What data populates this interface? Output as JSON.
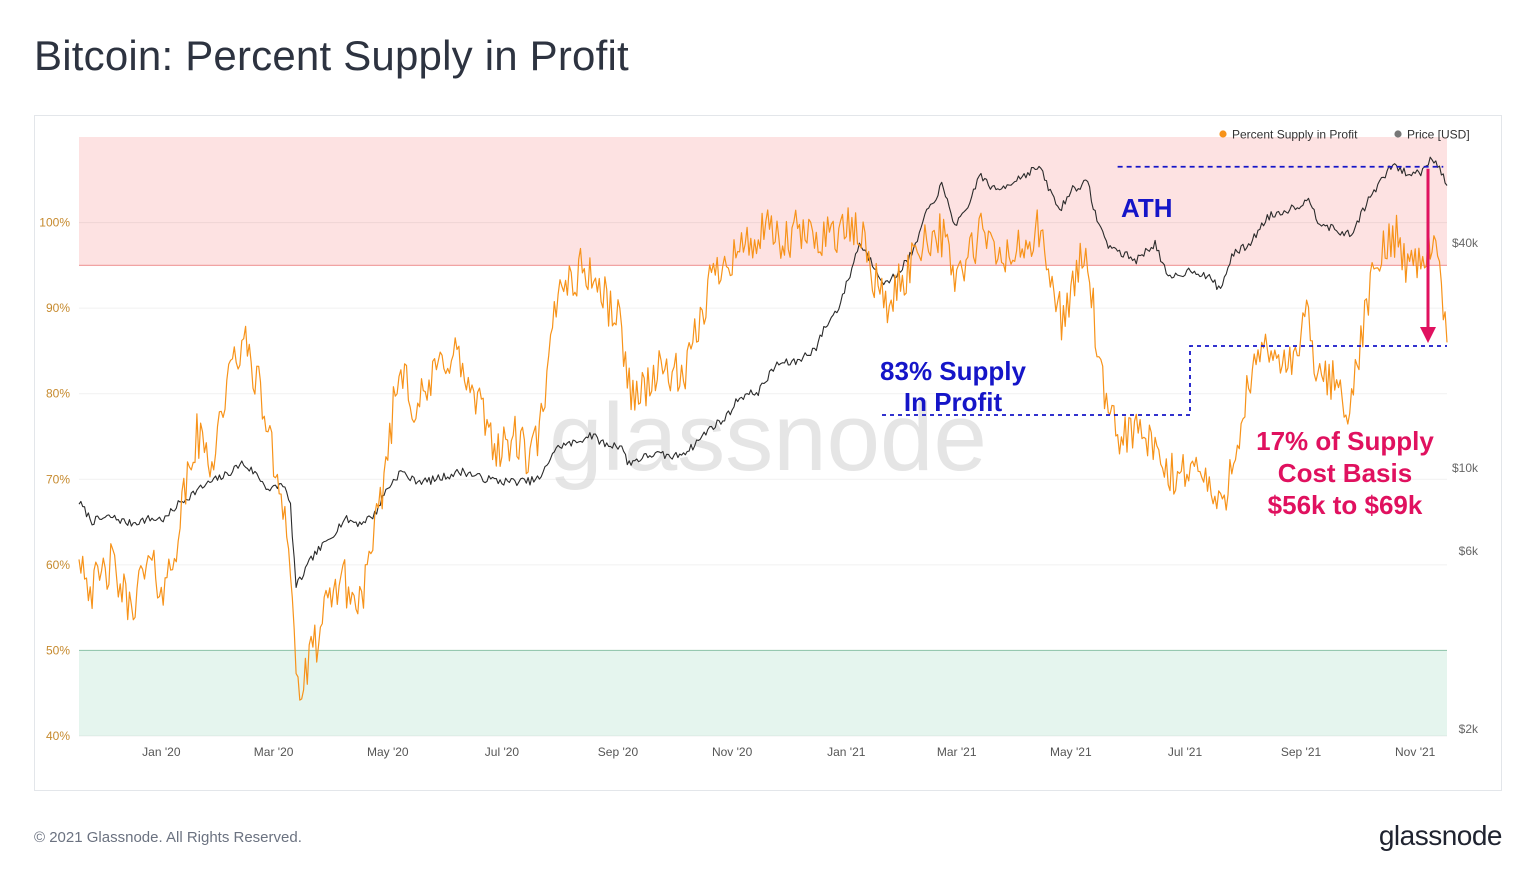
{
  "page": {
    "title": "Bitcoin: Percent Supply in Profit",
    "footer_copyright": "© 2021 Glassnode. All Rights Reserved.",
    "footer_logo": "glassnode",
    "watermark": "glassnode"
  },
  "colors": {
    "supply": "#f7931a",
    "price": "#2b2b2b",
    "upper_band": "#fde2e2",
    "upper_band_line": "#f1a3a3",
    "lower_band": "#e5f5ee",
    "lower_band_line": "#9fd4b9",
    "annotation_blue": "#1515c8",
    "annotation_pink": "#e0115f",
    "tick_left": "#c68a2e",
    "tick_right": "#666666"
  },
  "chart_data": {
    "type": "line",
    "legend": [
      "Percent Supply in Profit",
      "Price [USD]"
    ],
    "legend_position": "top-right",
    "x_ticks": [
      "Jan '20",
      "Mar '20",
      "May '20",
      "Jul '20",
      "Sep '20",
      "Nov '20",
      "Jan '21",
      "Mar '21",
      "May '21",
      "Jul '21",
      "Sep '21",
      "Nov '21"
    ],
    "x_range": [
      "2019-11-18",
      "2021-11-18"
    ],
    "y_left": {
      "ticks": [
        "100%",
        "90%",
        "80%",
        "70%",
        "60%",
        "50%",
        "40%"
      ],
      "range": [
        40,
        110
      ]
    },
    "y_right": {
      "ticks": [
        "$40k",
        "$10k",
        "$6k",
        "$2k"
      ],
      "scale": "log"
    },
    "bands": [
      {
        "from": 95,
        "to": 110,
        "zone": "upper"
      },
      {
        "from": 40,
        "to": 50,
        "zone": "lower"
      }
    ],
    "series": [
      {
        "name": "Percent Supply in Profit",
        "axis": "left",
        "points": [
          [
            "2019-11-18",
            62
          ],
          [
            "2019-11-25",
            57
          ],
          [
            "2019-12-05",
            60
          ],
          [
            "2019-12-15",
            55
          ],
          [
            "2019-12-25",
            60
          ],
          [
            "2020-01-03",
            57
          ],
          [
            "2020-01-10",
            64
          ],
          [
            "2020-01-15",
            70
          ],
          [
            "2020-01-20",
            75
          ],
          [
            "2020-01-28",
            72
          ],
          [
            "2020-02-02",
            78
          ],
          [
            "2020-02-08",
            83
          ],
          [
            "2020-02-13",
            86
          ],
          [
            "2020-02-18",
            84
          ],
          [
            "2020-02-25",
            78
          ],
          [
            "2020-03-01",
            72
          ],
          [
            "2020-03-06",
            68
          ],
          [
            "2020-03-10",
            60
          ],
          [
            "2020-03-13",
            47
          ],
          [
            "2020-03-16",
            45
          ],
          [
            "2020-03-22",
            50
          ],
          [
            "2020-03-30",
            55
          ],
          [
            "2020-04-06",
            59
          ],
          [
            "2020-04-14",
            55
          ],
          [
            "2020-04-22",
            60
          ],
          [
            "2020-04-30",
            72
          ],
          [
            "2020-05-05",
            80
          ],
          [
            "2020-05-10",
            84
          ],
          [
            "2020-05-15",
            78
          ],
          [
            "2020-05-22",
            80
          ],
          [
            "2020-05-30",
            84
          ],
          [
            "2020-06-06",
            85
          ],
          [
            "2020-06-14",
            80
          ],
          [
            "2020-06-22",
            77
          ],
          [
            "2020-06-30",
            73
          ],
          [
            "2020-07-08",
            75
          ],
          [
            "2020-07-16",
            72
          ],
          [
            "2020-07-24",
            78
          ],
          [
            "2020-07-28",
            88
          ],
          [
            "2020-08-02",
            94
          ],
          [
            "2020-08-08",
            93
          ],
          [
            "2020-08-14",
            95
          ],
          [
            "2020-08-20",
            93
          ],
          [
            "2020-08-28",
            90
          ],
          [
            "2020-09-03",
            88
          ],
          [
            "2020-09-06",
            81
          ],
          [
            "2020-09-12",
            80
          ],
          [
            "2020-09-20",
            82
          ],
          [
            "2020-09-28",
            83
          ],
          [
            "2020-10-06",
            81
          ],
          [
            "2020-10-12",
            86
          ],
          [
            "2020-10-20",
            93
          ],
          [
            "2020-10-28",
            96
          ],
          [
            "2020-11-06",
            97
          ],
          [
            "2020-11-14",
            98
          ],
          [
            "2020-11-22",
            99
          ],
          [
            "2020-11-28",
            97
          ],
          [
            "2020-12-06",
            99
          ],
          [
            "2020-12-14",
            98
          ],
          [
            "2020-12-22",
            99
          ],
          [
            "2020-12-30",
            99
          ],
          [
            "2021-01-05",
            99
          ],
          [
            "2021-01-10",
            98
          ],
          [
            "2021-01-14",
            95
          ],
          [
            "2021-01-22",
            90
          ],
          [
            "2021-01-28",
            92
          ],
          [
            "2021-02-04",
            95
          ],
          [
            "2021-02-10",
            98
          ],
          [
            "2021-02-20",
            99
          ],
          [
            "2021-02-28",
            94
          ],
          [
            "2021-03-06",
            95
          ],
          [
            "2021-03-14",
            99
          ],
          [
            "2021-03-22",
            96
          ],
          [
            "2021-03-30",
            96
          ],
          [
            "2021-04-06",
            97
          ],
          [
            "2021-04-14",
            99
          ],
          [
            "2021-04-20",
            93
          ],
          [
            "2021-04-26",
            89
          ],
          [
            "2021-05-02",
            92
          ],
          [
            "2021-05-08",
            97
          ],
          [
            "2021-05-12",
            92
          ],
          [
            "2021-05-16",
            83
          ],
          [
            "2021-05-20",
            78
          ],
          [
            "2021-05-26",
            75
          ],
          [
            "2021-06-04",
            76
          ],
          [
            "2021-06-12",
            74
          ],
          [
            "2021-06-20",
            71
          ],
          [
            "2021-06-26",
            70
          ],
          [
            "2021-07-04",
            72
          ],
          [
            "2021-07-12",
            70
          ],
          [
            "2021-07-20",
            66
          ],
          [
            "2021-07-26",
            72
          ],
          [
            "2021-08-03",
            80
          ],
          [
            "2021-08-10",
            84
          ],
          [
            "2021-08-18",
            85
          ],
          [
            "2021-08-26",
            83
          ],
          [
            "2021-09-05",
            89
          ],
          [
            "2021-09-10",
            81
          ],
          [
            "2021-09-18",
            82
          ],
          [
            "2021-09-28",
            78
          ],
          [
            "2021-10-04",
            88
          ],
          [
            "2021-10-10",
            94
          ],
          [
            "2021-10-16",
            97
          ],
          [
            "2021-10-22",
            99
          ],
          [
            "2021-10-28",
            95
          ],
          [
            "2021-11-04",
            96
          ],
          [
            "2021-11-10",
            98
          ],
          [
            "2021-11-14",
            94
          ],
          [
            "2021-11-18",
            86
          ]
        ]
      },
      {
        "name": "Price [USD]",
        "axis": "right",
        "points": [
          [
            "2019-11-18",
            8100
          ],
          [
            "2019-11-25",
            7200
          ],
          [
            "2019-12-05",
            7400
          ],
          [
            "2019-12-15",
            7100
          ],
          [
            "2019-12-25",
            7300
          ],
          [
            "2020-01-03",
            7300
          ],
          [
            "2020-01-10",
            8000
          ],
          [
            "2020-01-20",
            8700
          ],
          [
            "2020-01-28",
            9200
          ],
          [
            "2020-02-05",
            9600
          ],
          [
            "2020-02-13",
            10300
          ],
          [
            "2020-02-20",
            9700
          ],
          [
            "2020-02-28",
            8700
          ],
          [
            "2020-03-06",
            9100
          ],
          [
            "2020-03-10",
            7900
          ],
          [
            "2020-03-13",
            4800
          ],
          [
            "2020-03-16",
            5100
          ],
          [
            "2020-03-22",
            5800
          ],
          [
            "2020-03-30",
            6400
          ],
          [
            "2020-04-08",
            7300
          ],
          [
            "2020-04-16",
            7100
          ],
          [
            "2020-04-24",
            7500
          ],
          [
            "2020-04-30",
            8700
          ],
          [
            "2020-05-08",
            9800
          ],
          [
            "2020-05-14",
            9300
          ],
          [
            "2020-05-22",
            9200
          ],
          [
            "2020-06-01",
            9500
          ],
          [
            "2020-06-10",
            9800
          ],
          [
            "2020-06-20",
            9400
          ],
          [
            "2020-07-01",
            9200
          ],
          [
            "2020-07-15",
            9200
          ],
          [
            "2020-07-22",
            9400
          ],
          [
            "2020-07-28",
            11000
          ],
          [
            "2020-08-02",
            11500
          ],
          [
            "2020-08-10",
            11700
          ],
          [
            "2020-08-17",
            12300
          ],
          [
            "2020-08-26",
            11500
          ],
          [
            "2020-09-03",
            11500
          ],
          [
            "2020-09-06",
            10300
          ],
          [
            "2020-09-20",
            10900
          ],
          [
            "2020-10-01",
            10700
          ],
          [
            "2020-10-10",
            11300
          ],
          [
            "2020-10-21",
            12900
          ],
          [
            "2020-10-28",
            13500
          ],
          [
            "2020-11-05",
            15500
          ],
          [
            "2020-11-15",
            16000
          ],
          [
            "2020-11-25",
            19000
          ],
          [
            "2020-12-05",
            19200
          ],
          [
            "2020-12-16",
            21000
          ],
          [
            "2020-12-20",
            23500
          ],
          [
            "2020-12-28",
            27000
          ],
          [
            "2021-01-03",
            33000
          ],
          [
            "2021-01-08",
            40000
          ],
          [
            "2021-01-14",
            36000
          ],
          [
            "2021-01-22",
            31000
          ],
          [
            "2021-01-28",
            33000
          ],
          [
            "2021-02-06",
            38000
          ],
          [
            "2021-02-12",
            47000
          ],
          [
            "2021-02-21",
            57000
          ],
          [
            "2021-02-28",
            45000
          ],
          [
            "2021-03-06",
            48000
          ],
          [
            "2021-03-13",
            61000
          ],
          [
            "2021-03-22",
            55000
          ],
          [
            "2021-04-01",
            59000
          ],
          [
            "2021-04-14",
            64000
          ],
          [
            "2021-04-20",
            55000
          ],
          [
            "2021-04-25",
            49000
          ],
          [
            "2021-05-02",
            56000
          ],
          [
            "2021-05-10",
            58000
          ],
          [
            "2021-05-14",
            48000
          ],
          [
            "2021-05-20",
            40000
          ],
          [
            "2021-05-26",
            38000
          ],
          [
            "2021-06-05",
            36000
          ],
          [
            "2021-06-15",
            40000
          ],
          [
            "2021-06-22",
            32000
          ],
          [
            "2021-07-05",
            34000
          ],
          [
            "2021-07-15",
            32000
          ],
          [
            "2021-07-20",
            30000
          ],
          [
            "2021-07-26",
            37000
          ],
          [
            "2021-08-05",
            40000
          ],
          [
            "2021-08-14",
            47000
          ],
          [
            "2021-08-24",
            49000
          ],
          [
            "2021-09-06",
            52000
          ],
          [
            "2021-09-10",
            46000
          ],
          [
            "2021-09-20",
            43000
          ],
          [
            "2021-09-28",
            42000
          ],
          [
            "2021-10-04",
            49000
          ],
          [
            "2021-10-10",
            55000
          ],
          [
            "2021-10-20",
            65000
          ],
          [
            "2021-10-28",
            61000
          ],
          [
            "2021-11-04",
            62000
          ],
          [
            "2021-11-10",
            68000
          ],
          [
            "2021-11-14",
            64000
          ],
          [
            "2021-11-18",
            57000
          ]
        ]
      }
    ],
    "annotations": {
      "ath": {
        "label": "ATH",
        "date_from": "2021-05-26",
        "date_to": "2021-11-16"
      },
      "supply83": {
        "line1": "83% Supply",
        "line2": "In Profit"
      },
      "supply17": {
        "line1": "17% of Supply",
        "line2": "Cost Basis",
        "line3": "$56k to $69k"
      }
    }
  }
}
